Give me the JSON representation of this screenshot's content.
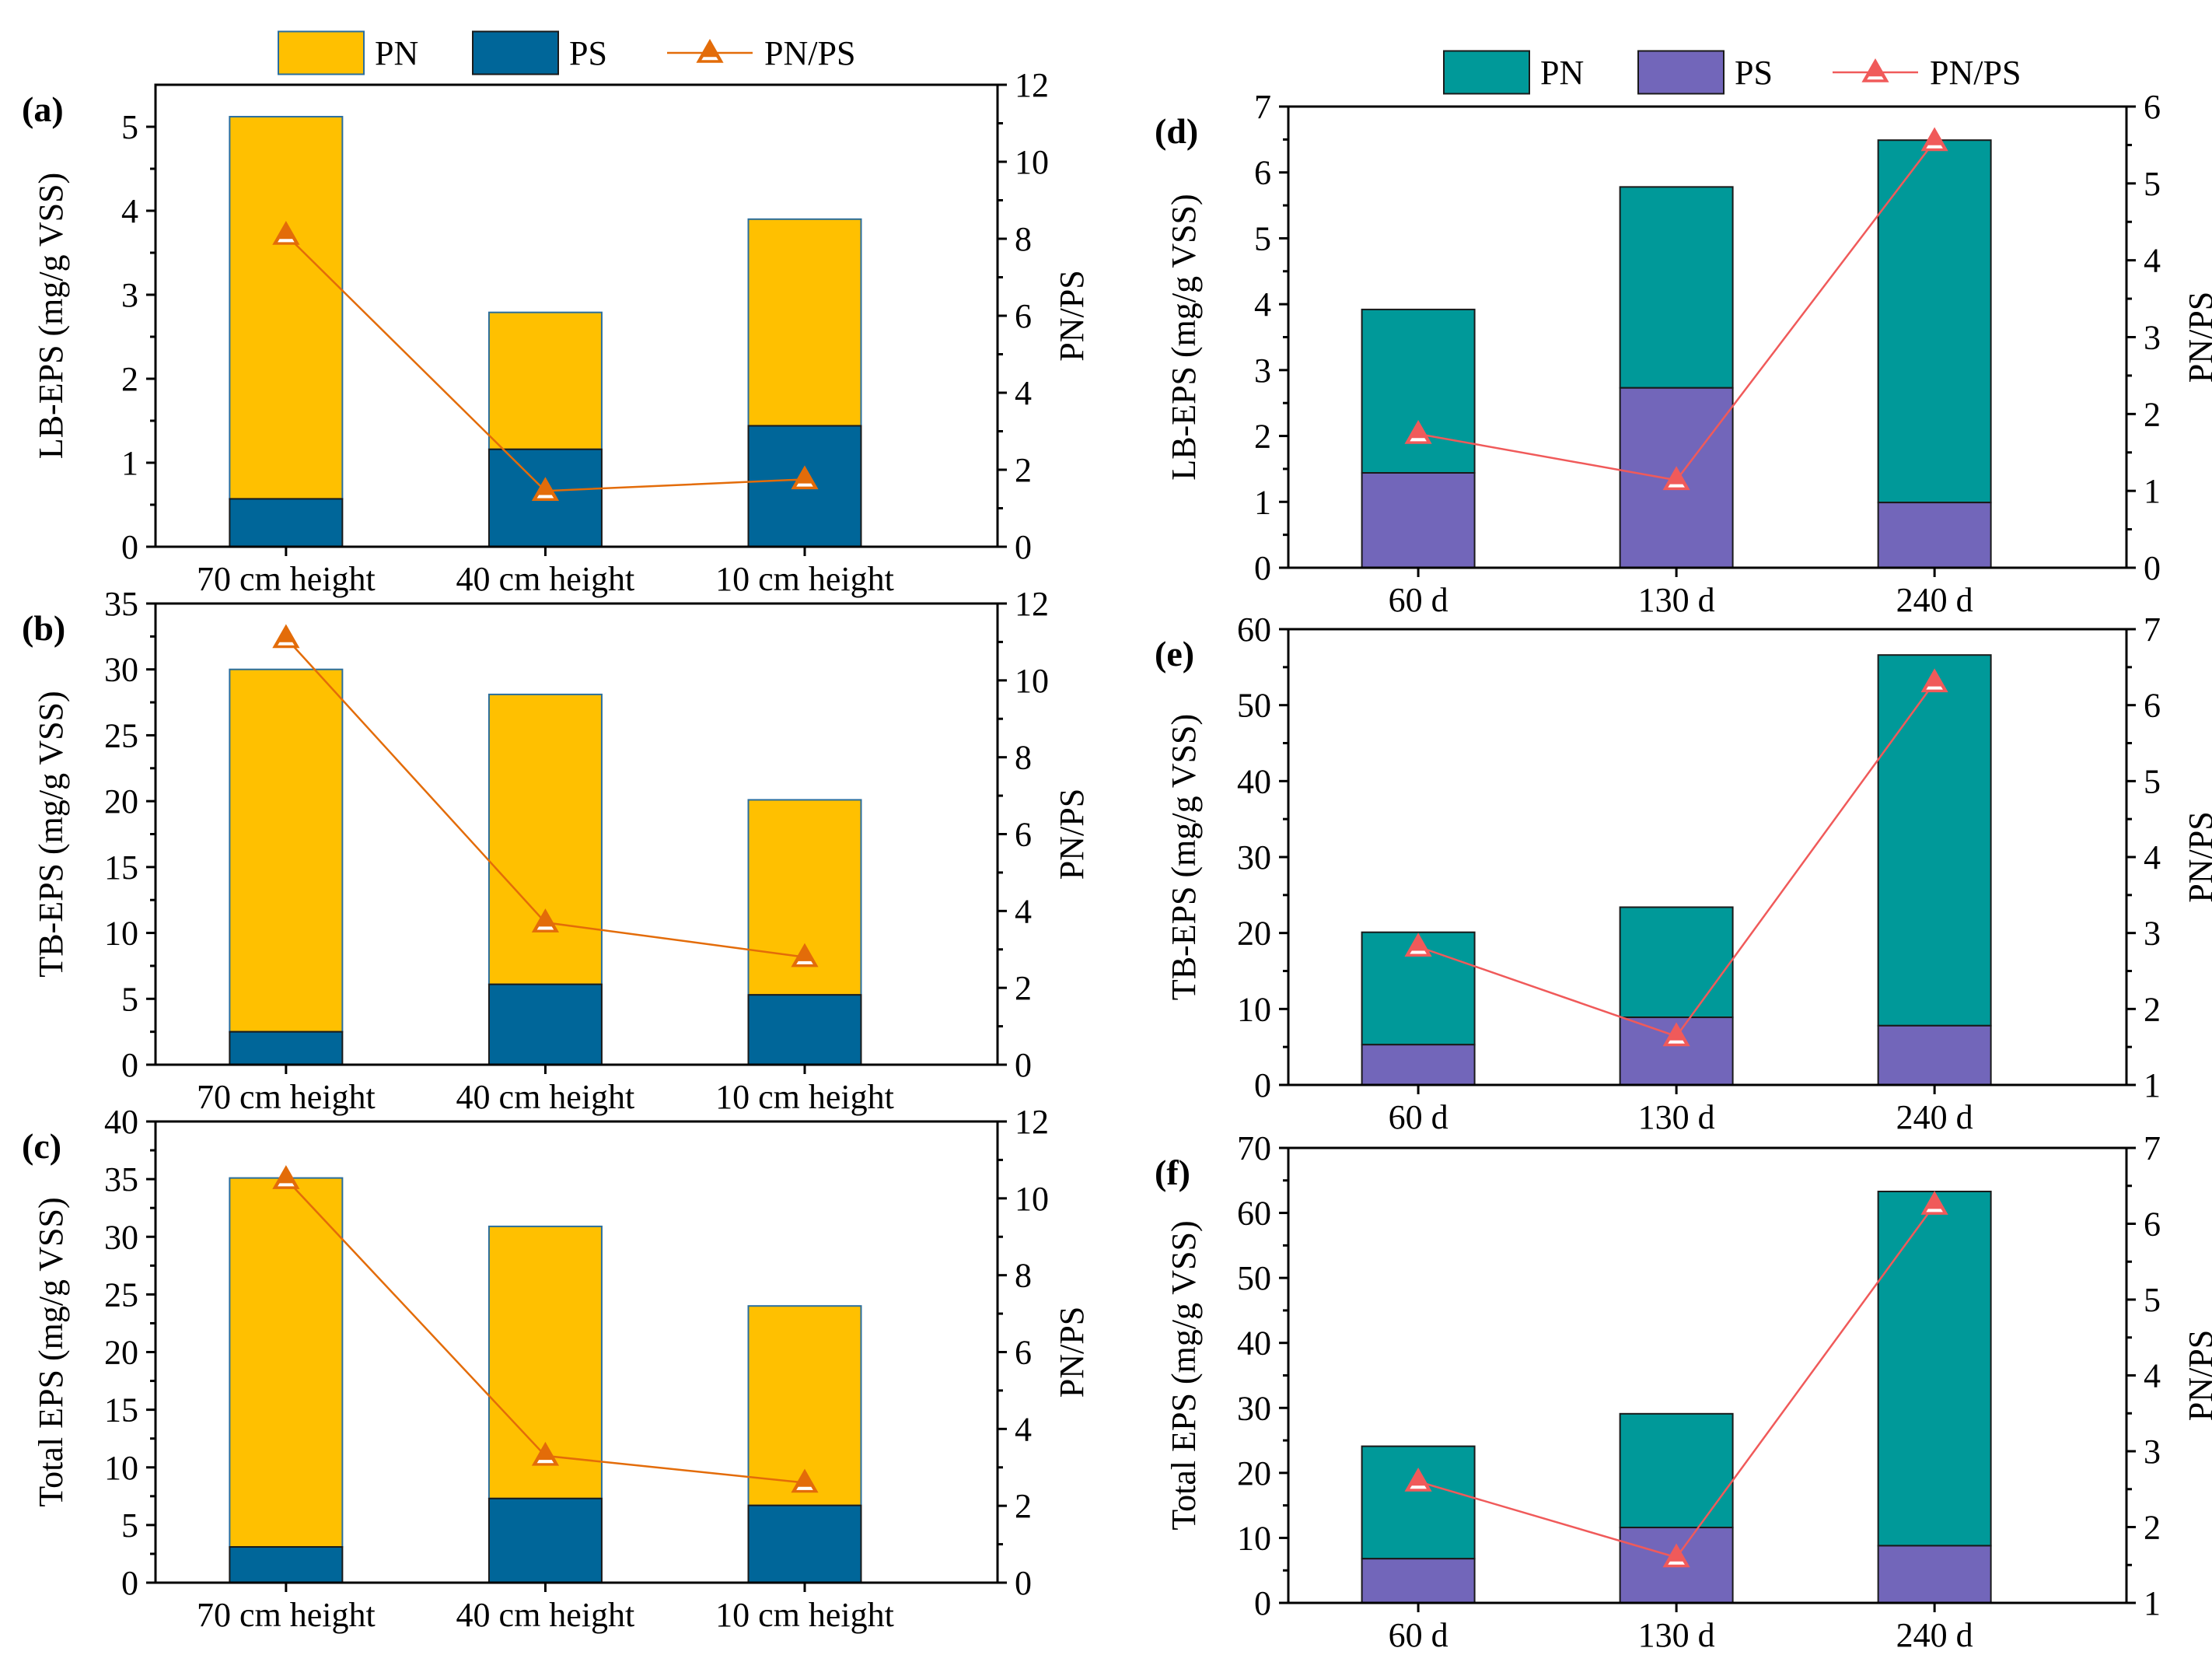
{
  "colors": {
    "left": {
      "pn": "#FFC000",
      "ps": "#006699",
      "ratio": "#E36C09"
    },
    "right": {
      "pn": "#009999",
      "ps": "#7266BA",
      "ratio": "#F05A5A"
    }
  },
  "legends": {
    "left": [
      "PN",
      "PS",
      "PN/PS"
    ],
    "right": [
      "PN",
      "PS",
      "PN/PS"
    ]
  },
  "chart_data": [
    {
      "panel": "(a)",
      "type": "bar",
      "stacked": true,
      "group": "left",
      "categories": [
        "70 cm height",
        "40 cm height",
        "10 cm height"
      ],
      "series": [
        {
          "name": "PS",
          "values": [
            0.57,
            1.16,
            1.44
          ]
        },
        {
          "name": "PN",
          "values": [
            4.55,
            1.63,
            2.46
          ]
        }
      ],
      "line": {
        "name": "PN/PS",
        "values": [
          8.1,
          1.45,
          1.75
        ]
      },
      "ylabel": "LB-EPS (mg/g VSS)",
      "ylim": [
        0,
        5.5
      ],
      "yticks": [
        "0",
        "1",
        "2",
        "3",
        "4",
        "5"
      ],
      "y2label": "PN/PS",
      "y2lim": [
        0,
        12
      ],
      "y2ticks": [
        "0",
        "2",
        "4",
        "6",
        "8",
        "10",
        "12"
      ]
    },
    {
      "panel": "(b)",
      "type": "bar",
      "stacked": true,
      "group": "left",
      "categories": [
        "70 cm height",
        "40 cm height",
        "10 cm height"
      ],
      "series": [
        {
          "name": "PS",
          "values": [
            2.5,
            6.1,
            5.3
          ]
        },
        {
          "name": "PN",
          "values": [
            27.5,
            22.0,
            14.8
          ]
        }
      ],
      "line": {
        "name": "PN/PS",
        "values": [
          11.1,
          3.7,
          2.8
        ]
      },
      "ylabel": "TB-EPS (mg/g VSS)",
      "ylim": [
        0,
        35
      ],
      "yticks": [
        "0",
        "5",
        "10",
        "15",
        "20",
        "25",
        "30",
        "35"
      ],
      "y2label": "PN/PS",
      "y2lim": [
        0,
        12
      ],
      "y2ticks": [
        "0",
        "2",
        "4",
        "6",
        "8",
        "10",
        "12"
      ]
    },
    {
      "panel": "(c)",
      "type": "bar",
      "stacked": true,
      "group": "left",
      "categories": [
        "70 cm height",
        "40 cm height",
        "10 cm height"
      ],
      "series": [
        {
          "name": "PS",
          "values": [
            3.1,
            7.3,
            6.7
          ]
        },
        {
          "name": "PN",
          "values": [
            32.0,
            23.6,
            17.3
          ]
        }
      ],
      "line": {
        "name": "PN/PS",
        "values": [
          10.5,
          3.3,
          2.6
        ]
      },
      "ylabel": "Total EPS (mg/g VSS)",
      "ylim": [
        0,
        40
      ],
      "yticks": [
        "0",
        "5",
        "10",
        "15",
        "20",
        "25",
        "30",
        "35",
        "40"
      ],
      "y2label": "PN/PS",
      "y2lim": [
        0,
        12
      ],
      "y2ticks": [
        "0",
        "2",
        "4",
        "6",
        "8",
        "10",
        "12"
      ]
    },
    {
      "panel": "(d)",
      "type": "bar",
      "stacked": true,
      "group": "right",
      "categories": [
        "60 d",
        "130 d",
        "240 d"
      ],
      "series": [
        {
          "name": "PS",
          "values": [
            1.44,
            2.73,
            0.99
          ]
        },
        {
          "name": "PN",
          "values": [
            2.48,
            3.05,
            5.5
          ]
        }
      ],
      "line": {
        "name": "PN/PS",
        "values": [
          1.74,
          1.14,
          5.55
        ]
      },
      "ylabel": "LB-EPS (mg/g VSS)",
      "ylim": [
        0,
        7
      ],
      "yticks": [
        "0",
        "1",
        "2",
        "3",
        "4",
        "5",
        "6",
        "7"
      ],
      "y2label": "PN/PS",
      "y2lim": [
        0,
        6
      ],
      "y2ticks": [
        "0",
        "1",
        "2",
        "3",
        "4",
        "5",
        "6"
      ]
    },
    {
      "panel": "(e)",
      "type": "bar",
      "stacked": true,
      "group": "right",
      "categories": [
        "60 d",
        "130 d",
        "240 d"
      ],
      "series": [
        {
          "name": "PS",
          "values": [
            5.3,
            8.9,
            7.8
          ]
        },
        {
          "name": "PN",
          "values": [
            14.8,
            14.5,
            48.8
          ]
        }
      ],
      "line": {
        "name": "PN/PS",
        "values": [
          2.82,
          1.64,
          6.3
        ]
      },
      "ylabel": "TB-EPS (mg/g VSS)",
      "ylim": [
        0,
        60
      ],
      "yticks": [
        "0",
        "10",
        "20",
        "30",
        "40",
        "50",
        "60"
      ],
      "y2label": "PN/PS",
      "y2lim": [
        1,
        7
      ],
      "y2ticks": [
        "1",
        "2",
        "3",
        "4",
        "5",
        "6",
        "7"
      ]
    },
    {
      "panel": "(f)",
      "type": "bar",
      "stacked": true,
      "group": "right",
      "categories": [
        "60 d",
        "130 d",
        "240 d"
      ],
      "series": [
        {
          "name": "PS",
          "values": [
            6.8,
            11.6,
            8.8
          ]
        },
        {
          "name": "PN",
          "values": [
            17.3,
            17.5,
            54.5
          ]
        }
      ],
      "line": {
        "name": "PN/PS",
        "values": [
          2.6,
          1.6,
          6.25
        ]
      },
      "ylabel": "Total EPS (mg/g VSS)",
      "ylim": [
        0,
        70
      ],
      "yticks": [
        "0",
        "10",
        "20",
        "30",
        "40",
        "50",
        "60",
        "70"
      ],
      "y2label": "PN/PS",
      "y2lim": [
        1,
        7
      ],
      "y2ticks": [
        "1",
        "2",
        "3",
        "4",
        "5",
        "6",
        "7"
      ]
    }
  ]
}
